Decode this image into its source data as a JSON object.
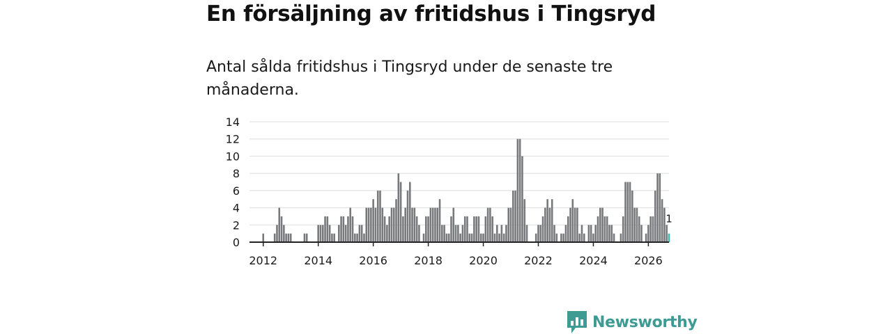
{
  "header": {
    "title": "En försäljning av fritidshus i Tingsryd",
    "subtitle": "Antal sålda fritidshus i Tingsryd under de senaste tre månaderna."
  },
  "brand": {
    "name": "Newsworthy",
    "icon": "newsworthy-logo-icon",
    "color": "#3d9b93"
  },
  "chart_data": {
    "type": "bar",
    "title": "En försäljning av fritidshus i Tingsryd",
    "subtitle": "Antal sålda fritidshus i Tingsryd under de senaste tre månaderna.",
    "xlabel": "",
    "ylabel": "",
    "x_start": 2011.5,
    "x_step": 0.08333,
    "ylim": [
      0,
      14
    ],
    "yticks": [
      0,
      2,
      4,
      6,
      8,
      10,
      12,
      14
    ],
    "xticks": [
      2012,
      2014,
      2016,
      2018,
      2020,
      2022,
      2024,
      2026
    ],
    "grid": true,
    "colors": {
      "bar": "#77787b",
      "highlight": "#3ab5ad",
      "grid": "#dddddd",
      "axis": "#222222"
    },
    "values": [
      0,
      0,
      0,
      0,
      0,
      0,
      1,
      0,
      0,
      0,
      0,
      1,
      2,
      4,
      3,
      2,
      1,
      1,
      1,
      0,
      0,
      0,
      0,
      0,
      1,
      1,
      0,
      0,
      0,
      0,
      2,
      2,
      2,
      3,
      3,
      2,
      1,
      1,
      0,
      2,
      3,
      3,
      2,
      3,
      4,
      3,
      1,
      1,
      2,
      2,
      1,
      4,
      4,
      4,
      5,
      4,
      6,
      6,
      4,
      3,
      2,
      3,
      4,
      4,
      5,
      8,
      7,
      3,
      4,
      6,
      7,
      4,
      4,
      3,
      2,
      0,
      1,
      3,
      3,
      4,
      4,
      4,
      4,
      5,
      2,
      2,
      1,
      1,
      3,
      4,
      2,
      2,
      1,
      2,
      3,
      3,
      1,
      1,
      3,
      3,
      3,
      1,
      1,
      3,
      4,
      4,
      3,
      1,
      2,
      1,
      2,
      1,
      2,
      4,
      4,
      6,
      6,
      12,
      12,
      10,
      5,
      2,
      0,
      0,
      0,
      1,
      2,
      2,
      3,
      4,
      5,
      4,
      5,
      2,
      1,
      0,
      1,
      1,
      2,
      3,
      4,
      5,
      4,
      4,
      1,
      2,
      1,
      0,
      2,
      2,
      1,
      2,
      3,
      4,
      4,
      3,
      3,
      2,
      2,
      1,
      0,
      0,
      1,
      3,
      7,
      7,
      7,
      6,
      4,
      4,
      3,
      2,
      0,
      1,
      2,
      3,
      3,
      6,
      8,
      8,
      5,
      4,
      2,
      1
    ],
    "highlight_last": true,
    "last_value_label": "1"
  }
}
